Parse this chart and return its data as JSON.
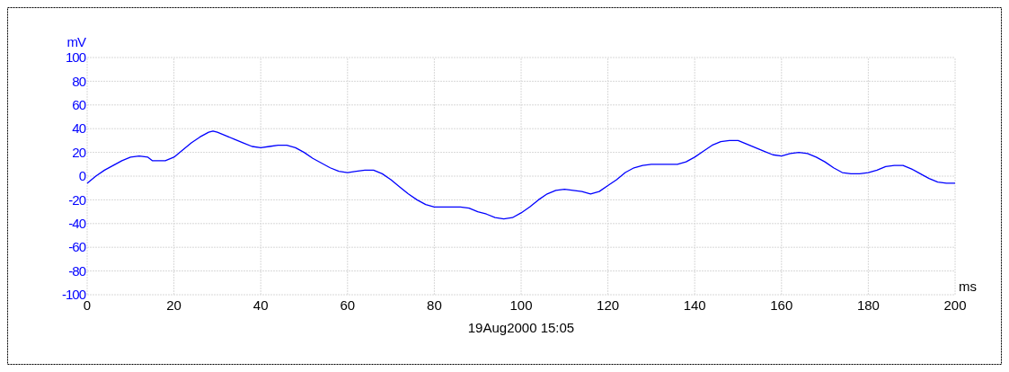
{
  "chart_data": {
    "type": "line",
    "xlabel": "ms",
    "ylabel": "mV",
    "annotations": [
      "19Aug2000  15:05"
    ],
    "xlim": [
      0,
      200
    ],
    "ylim": [
      -100,
      100
    ],
    "xticks": [
      0,
      20,
      40,
      60,
      80,
      100,
      120,
      140,
      160,
      180,
      200
    ],
    "yticks": [
      -100,
      -80,
      -60,
      -40,
      -20,
      0,
      20,
      40,
      60,
      80,
      100
    ],
    "grid": true,
    "marker": "none",
    "line_style": "solid",
    "series": [
      {
        "color": "#0000ff",
        "x": [
          0,
          2,
          4,
          6,
          8,
          10,
          12,
          14,
          15,
          18,
          20,
          22,
          24,
          26,
          28,
          29,
          30,
          32,
          34,
          36,
          38,
          40,
          42,
          44,
          46,
          48,
          50,
          52,
          54,
          56,
          58,
          60,
          62,
          64,
          66,
          68,
          70,
          72,
          74,
          76,
          78,
          80,
          82,
          86,
          88,
          90,
          92,
          94,
          96,
          98,
          100,
          102,
          104,
          106,
          108,
          110,
          112,
          114,
          116,
          118,
          120,
          122,
          124,
          126,
          128,
          130,
          134,
          136,
          138,
          140,
          142,
          144,
          146,
          148,
          150,
          152,
          154,
          156,
          158,
          160,
          162,
          164,
          166,
          168,
          170,
          172,
          174,
          176,
          178,
          180,
          182,
          184,
          186,
          188,
          190,
          192,
          194,
          196,
          198,
          200
        ],
        "values": [
          -6,
          0,
          5,
          9,
          13,
          16,
          17,
          16,
          13,
          13,
          16,
          22,
          28,
          33,
          37,
          38,
          37,
          34,
          31,
          28,
          25,
          24,
          25,
          26,
          26,
          24,
          20,
          15,
          11,
          7,
          4,
          3,
          4,
          5,
          5,
          2,
          -3,
          -9,
          -15,
          -20,
          -24,
          -26,
          -26,
          -26,
          -27,
          -30,
          -32,
          -35,
          -36,
          -35,
          -31,
          -26,
          -20,
          -15,
          -12,
          -11,
          -12,
          -13,
          -15,
          -13,
          -8,
          -3,
          3,
          7,
          9,
          10,
          10,
          10,
          12,
          16,
          21,
          26,
          29,
          30,
          30,
          27,
          24,
          21,
          18,
          17,
          19,
          20,
          19,
          16,
          12,
          7,
          3,
          2,
          2,
          3,
          5,
          8,
          9,
          9,
          6,
          2,
          -2,
          -5,
          -6,
          -6
        ]
      }
    ]
  }
}
